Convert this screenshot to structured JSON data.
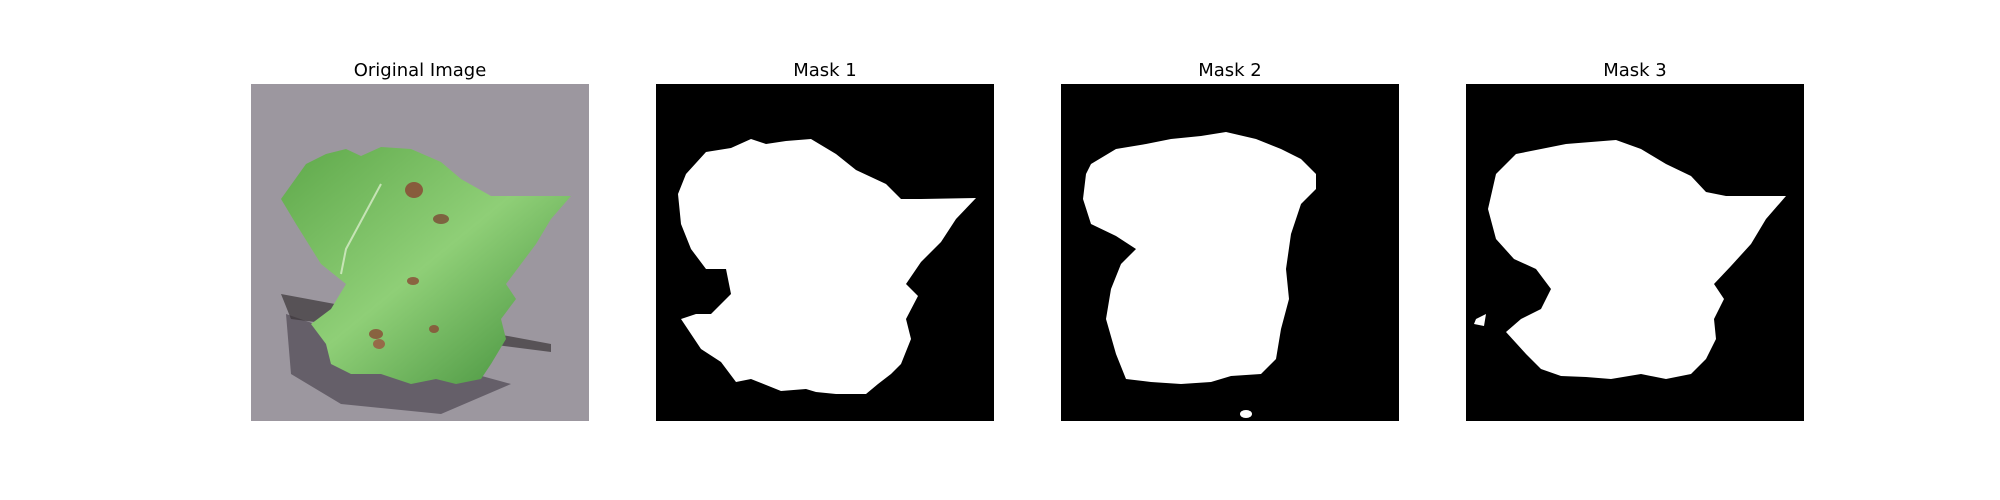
{
  "figure": {
    "panels": [
      {
        "id": "original",
        "title": "Original Image",
        "content": "leaf-photo"
      },
      {
        "id": "mask1",
        "title": "Mask 1",
        "content": "binary-mask"
      },
      {
        "id": "mask2",
        "title": "Mask 2",
        "content": "binary-mask"
      },
      {
        "id": "mask3",
        "title": "Mask 3",
        "content": "binary-mask"
      }
    ],
    "colors": {
      "mask_foreground": "#ffffff",
      "mask_background": "#000000",
      "ground": "#8f8a92",
      "leaf_light": "#7fc36a",
      "leaf_dark": "#2f7a2d",
      "lesion": "#8a4a35"
    }
  }
}
